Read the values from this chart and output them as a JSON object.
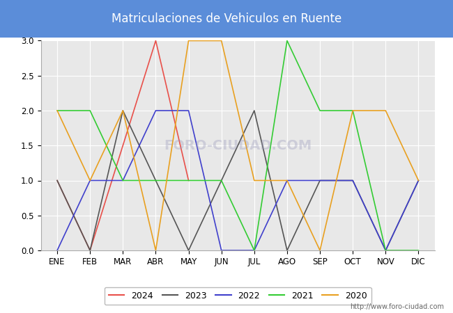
{
  "title": "Matriculaciones de Vehiculos en Ruente",
  "title_bg_color": "#5b8dd9",
  "title_text_color": "#ffffff",
  "months": [
    "ENE",
    "FEB",
    "MAR",
    "ABR",
    "MAY",
    "JUN",
    "JUL",
    "AGO",
    "SEP",
    "OCT",
    "NOV",
    "DIC"
  ],
  "ylim": [
    0,
    3.0
  ],
  "yticks": [
    0.0,
    0.5,
    1.0,
    1.5,
    2.0,
    2.5,
    3.0
  ],
  "series": {
    "2024": {
      "color": "#e8504a",
      "data": [
        1,
        0,
        null,
        3,
        1,
        null,
        null,
        null,
        null,
        null,
        null,
        null
      ]
    },
    "2023": {
      "color": "#555555",
      "data": [
        1,
        0,
        2,
        1,
        0,
        1,
        2,
        0,
        1,
        1,
        0,
        1
      ]
    },
    "2022": {
      "color": "#4040cc",
      "data": [
        0,
        1,
        1,
        2,
        2,
        0,
        0,
        1,
        1,
        1,
        0,
        1
      ]
    },
    "2021": {
      "color": "#33cc33",
      "data": [
        2,
        2,
        1,
        1,
        1,
        1,
        0,
        3,
        2,
        2,
        0,
        0
      ]
    },
    "2020": {
      "color": "#e8a020",
      "data": [
        2,
        1,
        2,
        0,
        3,
        3,
        1,
        1,
        0,
        2,
        2,
        1
      ]
    }
  },
  "legend_order": [
    "2024",
    "2023",
    "2022",
    "2021",
    "2020"
  ],
  "watermark_plot": "FORO-CIUDAD.COM",
  "watermark_url": "http://www.foro-ciudad.com",
  "bg_color": "#ffffff",
  "plot_bg_color": "#e8e8e8",
  "outer_bg_color": "#ffffff"
}
